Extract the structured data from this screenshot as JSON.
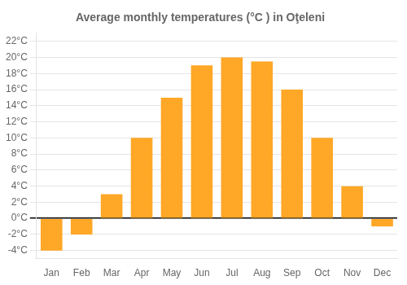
{
  "chart_data": {
    "type": "bar",
    "title": "Average monthly temperatures (°C ) in Oţeleni",
    "categories": [
      "Jan",
      "Feb",
      "Mar",
      "Apr",
      "May",
      "Jun",
      "Jul",
      "Aug",
      "Sep",
      "Oct",
      "Nov",
      "Dec"
    ],
    "values": [
      -4,
      -2,
      3,
      10,
      15,
      19,
      20,
      19.5,
      16,
      10,
      4,
      -1
    ],
    "color": "#FFA726",
    "ylim": [
      -5,
      23
    ],
    "yticks": [
      {
        "value": -4,
        "label": "-4°C"
      },
      {
        "value": -2,
        "label": "-2°C"
      },
      {
        "value": 0,
        "label": "0°C"
      },
      {
        "value": 2,
        "label": "2°C"
      },
      {
        "value": 4,
        "label": "4°C"
      },
      {
        "value": 6,
        "label": "6°C"
      },
      {
        "value": 8,
        "label": "8°C"
      },
      {
        "value": 10,
        "label": "10°C"
      },
      {
        "value": 12,
        "label": "12°C"
      },
      {
        "value": 14,
        "label": "14°C"
      },
      {
        "value": 16,
        "label": "16°C"
      },
      {
        "value": 18,
        "label": "18°C"
      },
      {
        "value": 20,
        "label": "20°C"
      },
      {
        "value": 22,
        "label": "22°C"
      }
    ],
    "grid": true
  }
}
